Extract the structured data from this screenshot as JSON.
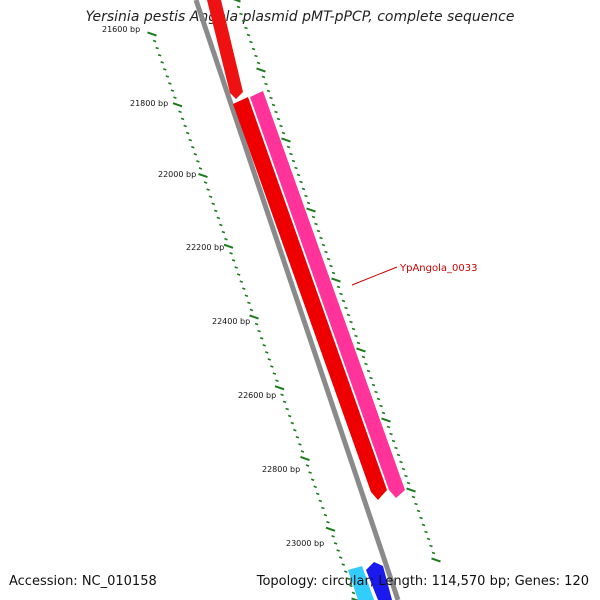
{
  "header": {
    "title": "Yersinia pestis Angola plasmid pMT-pPCP, complete sequence"
  },
  "footer": {
    "accession": "Accession: NC_010158",
    "summary": "Topology: circular; Length: 114,570 bp; Genes: 120"
  },
  "map": {
    "backbone_color": "#8a8a8a",
    "tick_color": "#1a7a1a",
    "ticks": [
      {
        "label": "21600 bp",
        "major": true
      },
      {
        "label": "21800 bp",
        "major": true
      },
      {
        "label": "22000 bp",
        "major": true
      },
      {
        "label": "22200 bp",
        "major": true
      },
      {
        "label": "22400 bp",
        "major": true
      },
      {
        "label": "22600 bp",
        "major": true
      },
      {
        "label": "22800 bp",
        "major": true
      },
      {
        "label": "23000 bp",
        "major": true
      }
    ],
    "gene_label": "YpAngola_0033",
    "features": [
      {
        "name": "red-gene-upper",
        "color": "#ee1111"
      },
      {
        "name": "red-gene-main",
        "color": "#ee0000"
      },
      {
        "name": "pink-gene",
        "color": "#ff3399"
      },
      {
        "name": "cyan-gene",
        "color": "#33ccff"
      },
      {
        "name": "blue-gene",
        "color": "#1a1aee"
      }
    ]
  }
}
